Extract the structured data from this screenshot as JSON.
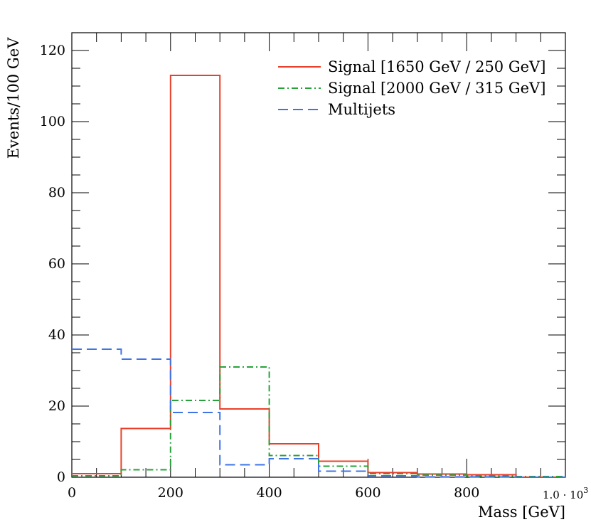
{
  "chart_data": {
    "type": "histogram",
    "xlabel": "Mass [GeV]",
    "ylabel": "Events/100 GeV",
    "x_scale_label": "1.0 · 10",
    "x_scale_exponent": "3",
    "xlim": [
      0,
      1000
    ],
    "ylim": [
      0,
      125
    ],
    "xticks": [
      0,
      200,
      400,
      600,
      800
    ],
    "xtick_labels": [
      "0",
      "200",
      "400",
      "600",
      "800"
    ],
    "yticks": [
      0,
      20,
      40,
      60,
      80,
      100,
      120
    ],
    "ytick_labels": [
      "0",
      "20",
      "40",
      "60",
      "80",
      "100",
      "120"
    ],
    "bin_edges": [
      0,
      100,
      200,
      300,
      400,
      500,
      600,
      700,
      800,
      900,
      1000
    ],
    "legend_position": "top-right",
    "grid": false,
    "series": [
      {
        "name": "Signal [1650 GeV / 250 GeV]",
        "style": "solid",
        "color": "#e8402a",
        "values": [
          1.0,
          13.7,
          113.0,
          19.2,
          9.4,
          4.5,
          1.3,
          0.9,
          0.7,
          0.0
        ]
      },
      {
        "name": "Signal [2000 GeV / 315 GeV]",
        "style": "dashdot",
        "color": "#27a23a",
        "values": [
          0.4,
          2.1,
          21.6,
          31.0,
          6.1,
          3.1,
          1.0,
          0.6,
          0.3,
          0.2
        ]
      },
      {
        "name": "Multijets",
        "style": "dashed",
        "color": "#3e74e6",
        "values": [
          36.0,
          33.2,
          18.2,
          3.5,
          5.2,
          1.7,
          0.4,
          0.1,
          0.1,
          0.0
        ]
      }
    ]
  }
}
